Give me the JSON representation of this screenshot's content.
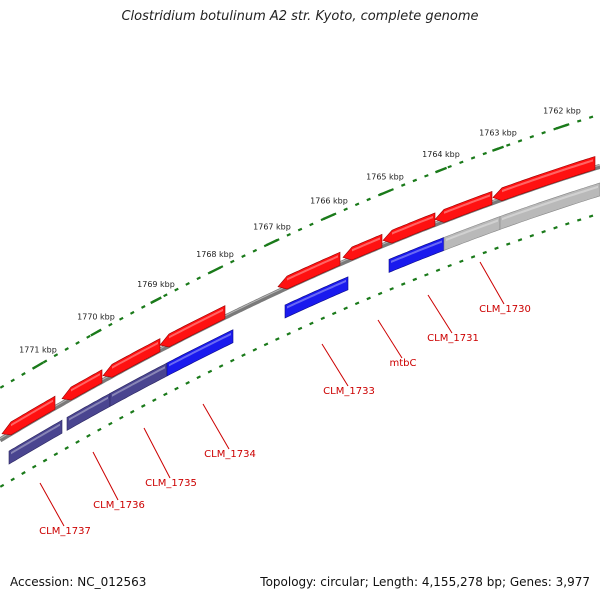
{
  "title": "Clostridium botulinum A2 str. Kyoto, complete genome",
  "footer": {
    "accession_label": "Accession:",
    "accession": "NC_012563",
    "topology_label": "Topology:",
    "topology": "circular",
    "length_label": "Length:",
    "length": "4,155,278 bp",
    "genes_label": "Genes:",
    "genes": "3,977"
  },
  "colors": {
    "forward_gene": "#ff1111",
    "reverse_gene": "#1a1aee",
    "reverse_gene_dark": "#4a4590",
    "pseudo_gene": "#b9b9b9",
    "backbone": "#7a7a7a",
    "ticks": "#1a7a1a",
    "gene_label": "#cc0000"
  },
  "scale": {
    "unit": "kbp",
    "ticks": [
      {
        "kbp": 1762,
        "label": "1762 kbp"
      },
      {
        "kbp": 1763,
        "label": "1763 kbp"
      },
      {
        "kbp": 1764,
        "label": "1764 kbp"
      },
      {
        "kbp": 1765,
        "label": "1765 kbp"
      },
      {
        "kbp": 1766,
        "label": "1766 kbp"
      },
      {
        "kbp": 1767,
        "label": "1767 kbp"
      },
      {
        "kbp": 1768,
        "label": "1768 kbp"
      },
      {
        "kbp": 1769,
        "label": "1769 kbp"
      },
      {
        "kbp": 1770,
        "label": "1770 kbp"
      },
      {
        "kbp": 1771,
        "label": "1771 kbp"
      }
    ]
  },
  "gene_labels": [
    {
      "id": "CLM_1730",
      "label": "CLM_1730"
    },
    {
      "id": "CLM_1731",
      "label": "CLM_1731"
    },
    {
      "id": "mtbC",
      "label": "mtbC"
    },
    {
      "id": "CLM_1733",
      "label": "CLM_1733"
    },
    {
      "id": "CLM_1734",
      "label": "CLM_1734"
    },
    {
      "id": "CLM_1735",
      "label": "CLM_1735"
    },
    {
      "id": "CLM_1736",
      "label": "CLM_1736"
    },
    {
      "id": "CLM_1737",
      "label": "CLM_1737"
    }
  ]
}
